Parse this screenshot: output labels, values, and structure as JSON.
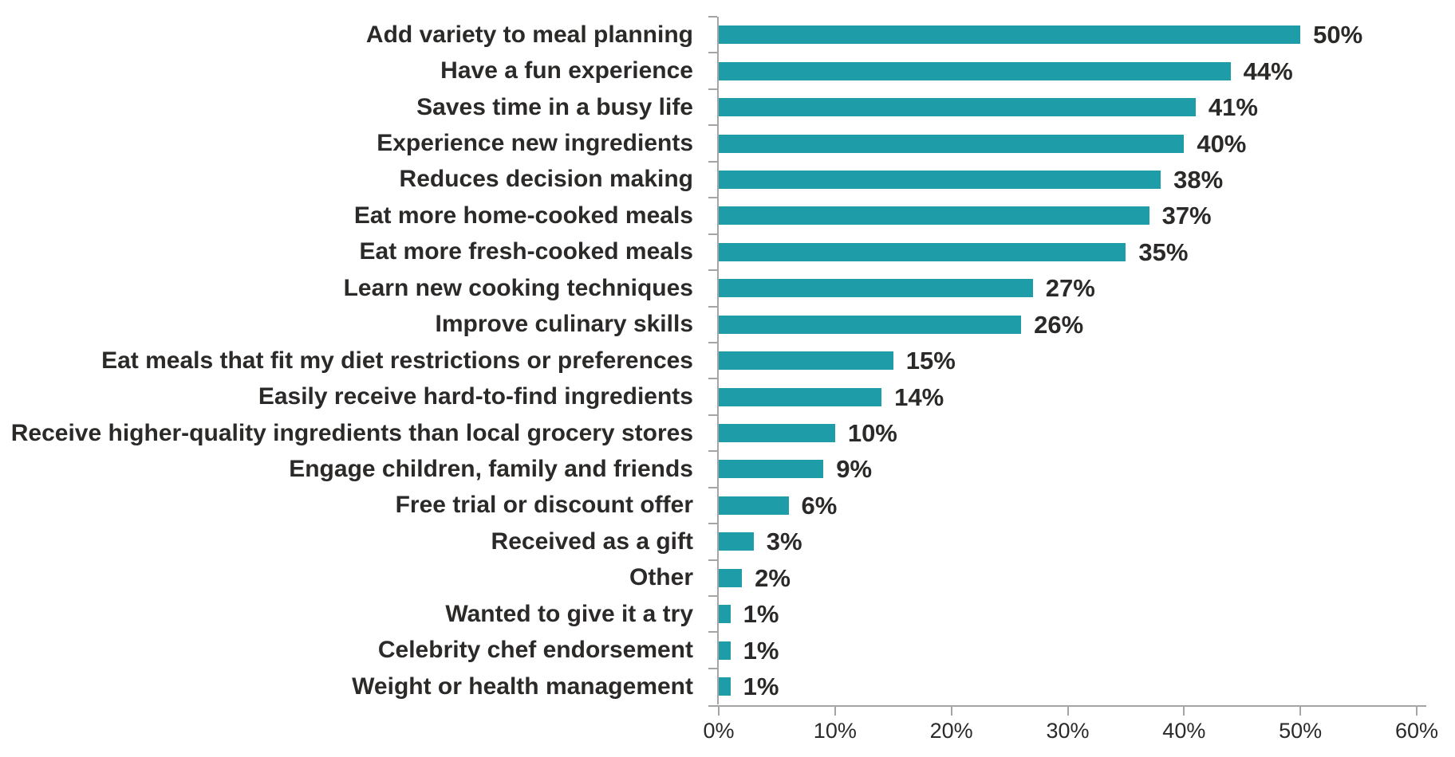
{
  "chart_data": {
    "type": "bar",
    "orientation": "horizontal",
    "title": "",
    "xlabel": "",
    "ylabel": "",
    "xlim": [
      0,
      60
    ],
    "grid": false,
    "legend": false,
    "categories": [
      "Add variety to meal planning",
      "Have a fun experience",
      "Saves time in a busy life",
      "Experience new ingredients",
      "Reduces decision making",
      "Eat more home-cooked meals",
      "Eat more fresh-cooked meals",
      "Learn new cooking techniques",
      "Improve culinary skills",
      "Eat meals that fit my diet restrictions or preferences",
      "Easily receive hard-to-find ingredients",
      "Receive higher-quality ingredients than local grocery stores",
      "Engage children, family and friends",
      "Free trial or discount offer",
      "Received as a gift",
      "Other",
      "Wanted to give it a try",
      "Celebrity chef endorsement",
      "Weight or health management"
    ],
    "values": [
      50,
      44,
      41,
      40,
      38,
      37,
      35,
      27,
      26,
      15,
      14,
      10,
      9,
      6,
      3,
      2,
      1,
      1,
      1
    ],
    "value_labels": [
      "50%",
      "44%",
      "41%",
      "40%",
      "38%",
      "37%",
      "35%",
      "27%",
      "26%",
      "15%",
      "14%",
      "10%",
      "9%",
      "6%",
      "3%",
      "2%",
      "1%",
      "1%",
      "1%"
    ],
    "x_ticks": [
      "0%",
      "10%",
      "20%",
      "30%",
      "40%",
      "50%",
      "60%"
    ],
    "bar_color": "#1E9DA9",
    "text_color": "#2B2A29",
    "axis_color": "#A5A5A5"
  }
}
